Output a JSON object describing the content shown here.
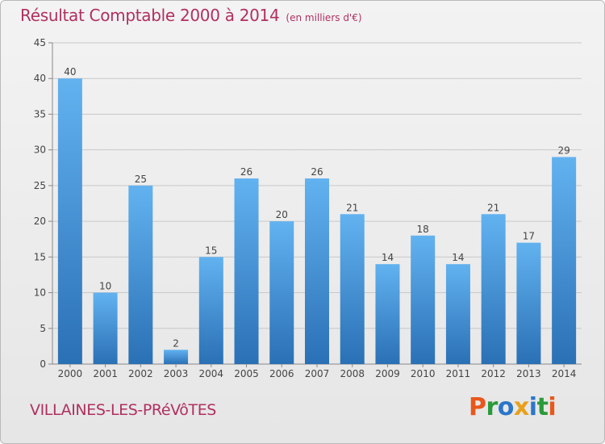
{
  "chart_data": {
    "type": "bar",
    "title": "Résultat Comptable 2000 à 2014",
    "subtitle": "(en milliers d'€)",
    "categories": [
      "2000",
      "2001",
      "2002",
      "2003",
      "2004",
      "2005",
      "2006",
      "2007",
      "2008",
      "2009",
      "2010",
      "2011",
      "2012",
      "2013",
      "2014"
    ],
    "values": [
      40,
      10,
      25,
      2,
      15,
      26,
      20,
      26,
      21,
      14,
      18,
      14,
      21,
      17,
      29
    ],
    "ylim": [
      0,
      45
    ],
    "yticks": [
      0,
      5,
      10,
      15,
      20,
      25,
      30,
      35,
      40,
      45
    ],
    "grid": true,
    "bar_color": "#3d8fd8",
    "bar_color_dark": "#2a70b5",
    "bar_color_light": "#62b2f0"
  },
  "footer": {
    "commune": "VILLAINES-LES-PRéVôTES",
    "logo_letters": [
      "P",
      "r",
      "o",
      "x",
      "i",
      "t",
      "i"
    ],
    "logo_colors": [
      "#e8581c",
      "#2b9a3a",
      "#2b76c8",
      "#e8a11c",
      "#2b76c8",
      "#2b9a3a",
      "#e8581c"
    ]
  }
}
